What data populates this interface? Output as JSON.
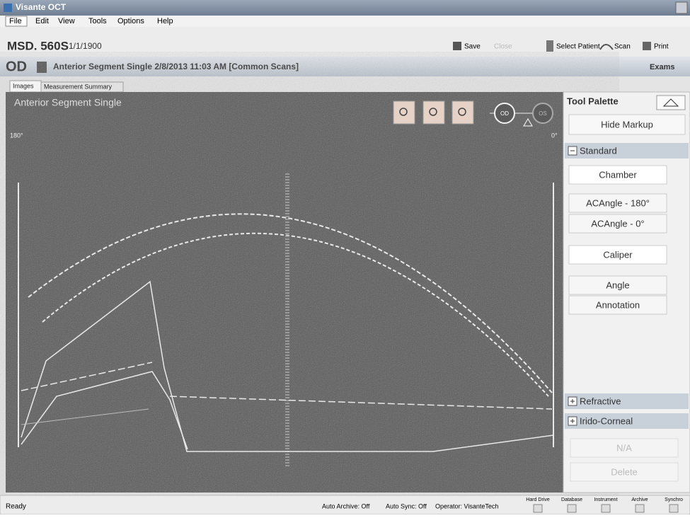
{
  "window": {
    "title": "Visante OCT"
  },
  "menu": [
    "File",
    "Edit",
    "View",
    "Tools",
    "Options",
    "Help"
  ],
  "patient": {
    "id": "MSD. 560S",
    "date": "1/1/1900"
  },
  "toolbar": [
    "Save",
    "Close",
    "Select Patient",
    "Scan",
    "Print"
  ],
  "exam": {
    "eye": "OD",
    "title": "Anterior Segment Single 2/8/2013 11:03 AM [Common Scans]",
    "exams": "Exams"
  },
  "tabs": [
    "Images",
    "Measurement Summary"
  ],
  "image": {
    "label": "Anterior Segment Single",
    "left_angle": "180°",
    "right_angle": "0°",
    "od": "OD",
    "os": "OS"
  },
  "palette": {
    "title": "Tool Palette",
    "hide": "Hide Markup",
    "standard": "Standard",
    "buttons": [
      "Chamber",
      "ACAngle - 180°",
      "ACAngle - 0°",
      "Caliper",
      "Angle",
      "Annotation"
    ],
    "refractive": "Refractive",
    "irido": "Irido-Corneal",
    "na": "N/A",
    "delete": "Delete"
  },
  "status": {
    "ready": "Ready",
    "items": [
      "Auto Archive: Off",
      "Auto Sync: Off",
      "Operator: VisanteTech"
    ],
    "indicators": [
      "Hard Drive",
      "Database",
      "Instrument",
      "Archive",
      "Synchro"
    ]
  }
}
